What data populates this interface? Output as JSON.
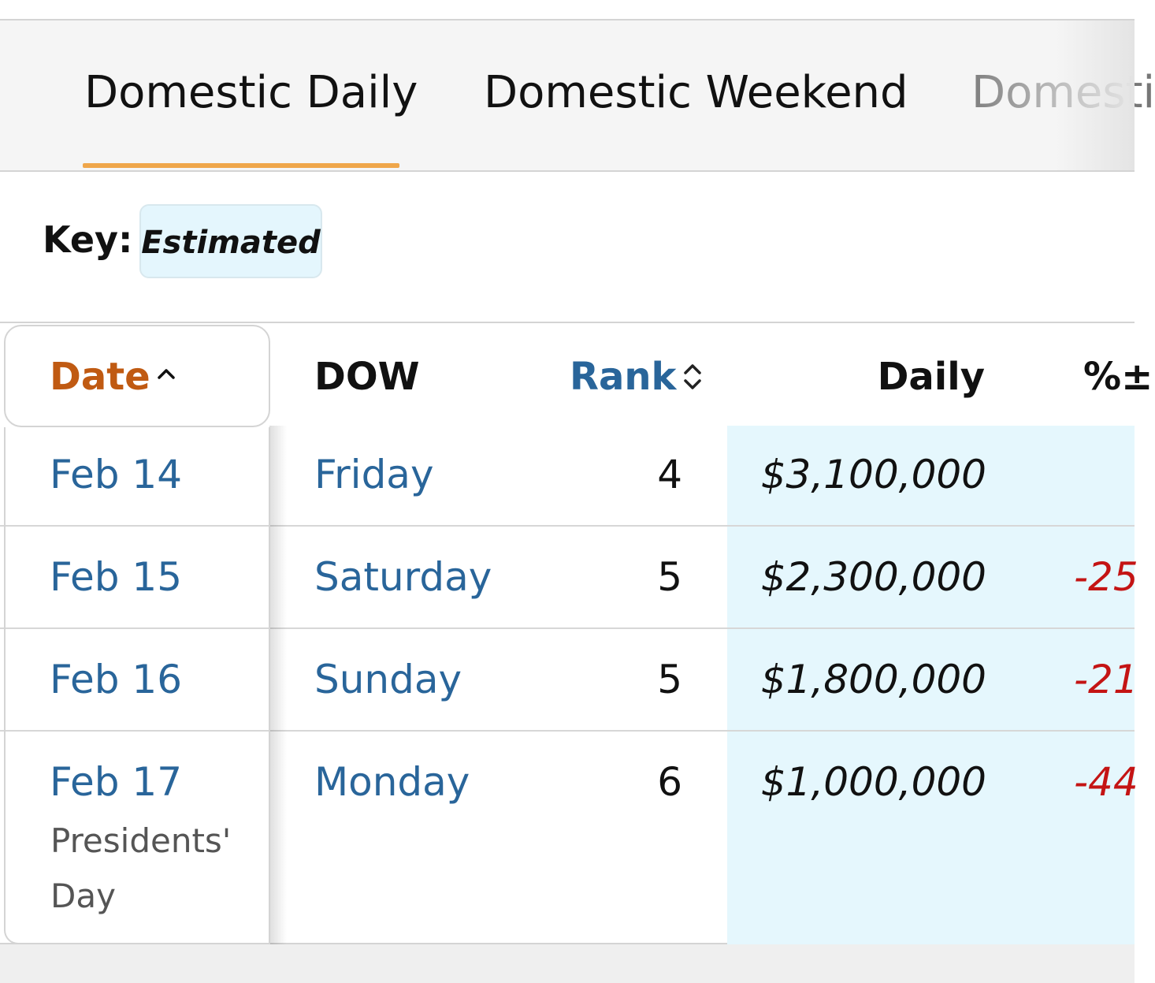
{
  "tabs": [
    {
      "label": "Domestic Daily"
    },
    {
      "label": "Domestic Weekend"
    },
    {
      "label": "Domesti"
    }
  ],
  "key": {
    "label": "Key:",
    "badge": "Estimated"
  },
  "table": {
    "headers": {
      "date": "Date",
      "dow": "DOW",
      "rank": "Rank",
      "daily": "Daily",
      "pct": "%±"
    },
    "rows": [
      {
        "date": "Feb 14",
        "note": "",
        "dow": "Friday",
        "rank": "4",
        "daily": "$3,100,000",
        "pct": ""
      },
      {
        "date": "Feb 15",
        "note": "",
        "dow": "Saturday",
        "rank": "5",
        "daily": "$2,300,000",
        "pct": "-25"
      },
      {
        "date": "Feb 16",
        "note": "",
        "dow": "Sunday",
        "rank": "5",
        "daily": "$1,800,000",
        "pct": "-21"
      },
      {
        "date": "Feb 17",
        "note": "Presidents' Day",
        "note_lines": [
          "Presidents'",
          "Day"
        ],
        "dow": "Monday",
        "rank": "6",
        "daily": "$1,000,000",
        "pct": "-44"
      }
    ]
  },
  "colors": {
    "accent_underline": "#efa64a",
    "date_header": "#c05a12",
    "link_blue": "#29659a",
    "estimated_bg": "#e5f7fd",
    "negative": "#c41414"
  },
  "icons": {
    "date_sort": "chevron-up-icon",
    "rank_sort": "sort-updown-icon"
  }
}
